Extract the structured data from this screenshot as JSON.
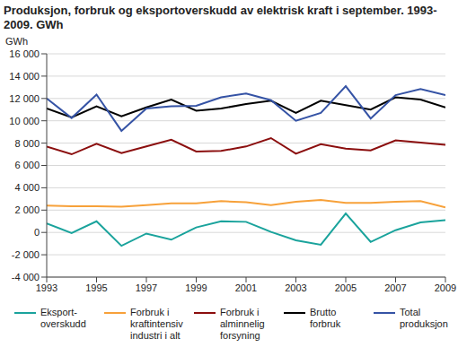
{
  "chart_data": {
    "type": "line",
    "title": "Produksjon, forbruk og eksportoverskudd av elektrisk kraft i september. 1993-2009. GWh",
    "y_label": "GWh",
    "x": [
      1993,
      1994,
      1995,
      1996,
      1997,
      1998,
      1999,
      2000,
      2001,
      2002,
      2003,
      2004,
      2005,
      2006,
      2007,
      2008,
      2009
    ],
    "xlim": [
      1993,
      2009
    ],
    "xticks": [
      1993,
      1995,
      1997,
      1999,
      2001,
      2003,
      2005,
      2007,
      2009
    ],
    "ylim": [
      -4000,
      16000
    ],
    "yticks": [
      {
        "value": -4000,
        "label": "-4 000"
      },
      {
        "value": -2000,
        "label": "-2 000"
      },
      0,
      {
        "value": 2000,
        "label": "2 000"
      },
      {
        "value": 4000,
        "label": "4 000"
      },
      {
        "value": 6000,
        "label": "6 000"
      },
      {
        "value": 8000,
        "label": "8 000"
      },
      {
        "value": 10000,
        "label": "10 000"
      },
      {
        "value": 12000,
        "label": "12 000"
      },
      {
        "value": 14000,
        "label": "14 000"
      },
      {
        "value": 16000,
        "label": "16 000"
      }
    ],
    "grid": true,
    "legend": "bottom",
    "series": [
      {
        "name": "Eksport- overskudd",
        "color": "#1aa39c",
        "values": [
          800,
          -50,
          1000,
          -1200,
          -100,
          -650,
          450,
          1000,
          950,
          50,
          -700,
          -1100,
          1700,
          -850,
          200,
          900,
          1100
        ]
      },
      {
        "name": "Forbruk i kraftintensiv industri i alt",
        "color": "#f7a13a",
        "values": [
          2400,
          2350,
          2350,
          2300,
          2450,
          2600,
          2600,
          2800,
          2700,
          2450,
          2750,
          2900,
          2650,
          2650,
          2750,
          2800,
          2250
        ]
      },
      {
        "name": "Forbruk i alminnelig forsyning",
        "color": "#8b0e0e",
        "values": [
          7700,
          7000,
          7950,
          7100,
          7700,
          8300,
          7250,
          7300,
          7700,
          8450,
          7050,
          7900,
          7500,
          7350,
          8250,
          8050,
          7850
        ]
      },
      {
        "name": "Brutto forbruk",
        "color": "#000000",
        "values": [
          11100,
          10300,
          11300,
          10400,
          11200,
          11900,
          10900,
          11100,
          11500,
          11800,
          10700,
          11800,
          11400,
          11000,
          12100,
          11900,
          11200
        ]
      },
      {
        "name": "Total produksjon",
        "color": "#3553a5",
        "values": [
          12000,
          10250,
          12350,
          9100,
          11100,
          11300,
          11350,
          12100,
          12450,
          11850,
          10000,
          10700,
          13100,
          10200,
          12300,
          12850,
          12300
        ]
      }
    ]
  }
}
